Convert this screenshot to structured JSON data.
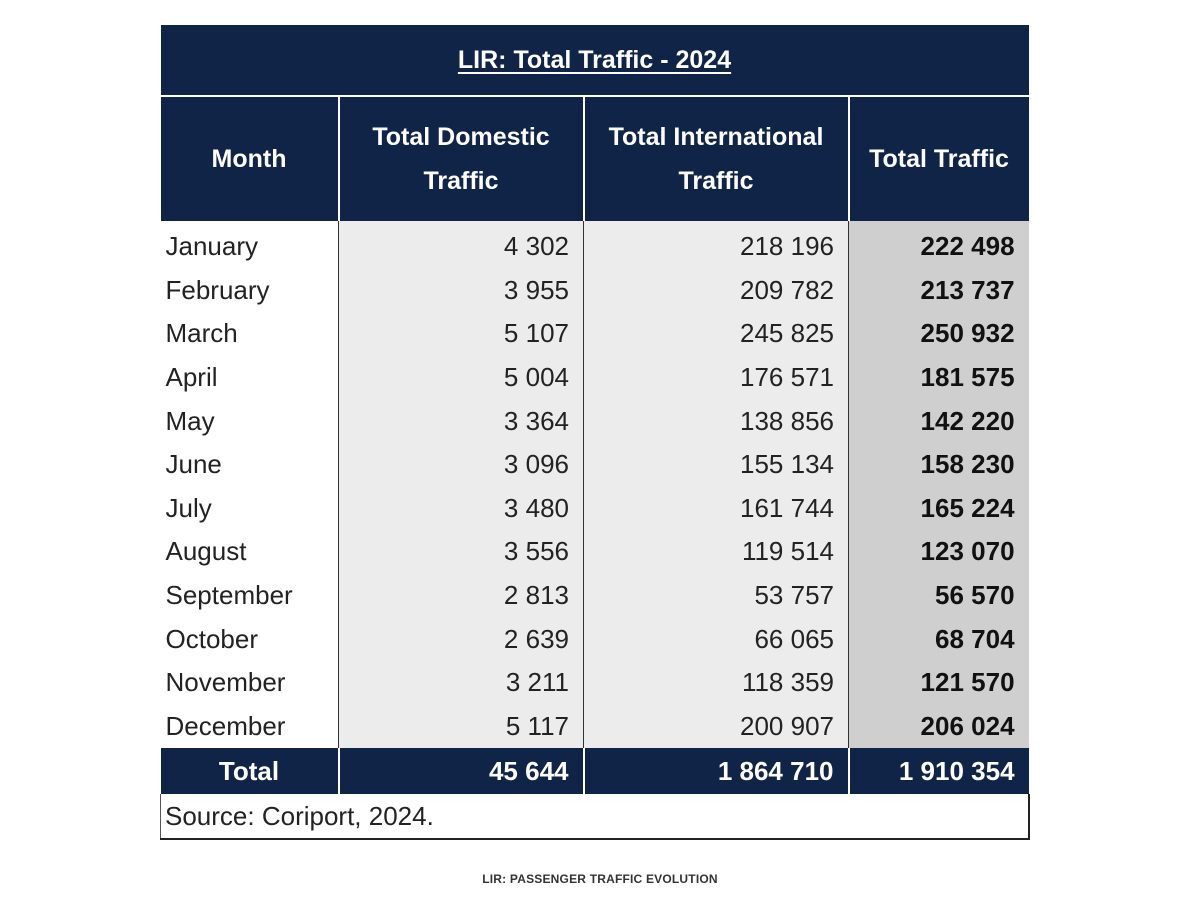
{
  "table": {
    "title": "LIR: Total Traffic - 2024",
    "headers": {
      "month_line1": "Month",
      "domestic_line1": "Total Domestic",
      "domestic_line2": "Traffic",
      "international_line1": "Total International",
      "international_line2": "Traffic",
      "total_line1": "Total Traffic"
    },
    "rows": [
      {
        "month": "January",
        "domestic": "4 302",
        "international": "218 196",
        "total": "222 498"
      },
      {
        "month": "February",
        "domestic": "3 955",
        "international": "209 782",
        "total": "213 737"
      },
      {
        "month": "March",
        "domestic": "5 107",
        "international": "245 825",
        "total": "250 932"
      },
      {
        "month": "April",
        "domestic": "5 004",
        "international": "176 571",
        "total": "181 575"
      },
      {
        "month": "May",
        "domestic": "3 364",
        "international": "138 856",
        "total": "142 220"
      },
      {
        "month": "June",
        "domestic": "3 096",
        "international": "155 134",
        "total": "158 230"
      },
      {
        "month": "July",
        "domestic": "3 480",
        "international": "161 744",
        "total": "165 224"
      },
      {
        "month": "August",
        "domestic": "3 556",
        "international": "119 514",
        "total": "123 070"
      },
      {
        "month": "September",
        "domestic": "2 813",
        "international": "53 757",
        "total": "56 570"
      },
      {
        "month": "October",
        "domestic": "2 639",
        "international": "66 065",
        "total": "68 704"
      },
      {
        "month": "November",
        "domestic": "3 211",
        "international": "118 359",
        "total": "121 570"
      },
      {
        "month": "December",
        "domestic": "5 117",
        "international": "200 907",
        "total": "206 024"
      }
    ],
    "totals": {
      "label": "Total",
      "domestic": "45 644",
      "international": "1 864 710",
      "total": "1 910 354"
    },
    "source": "Source: Coriport, 2024."
  },
  "caption": "LIR: PASSENGER TRAFFIC EVOLUTION",
  "colors": {
    "header_bg": "#0f2446",
    "cell_bg": "#ececec",
    "total_col_bg": "#cfcfcf"
  }
}
